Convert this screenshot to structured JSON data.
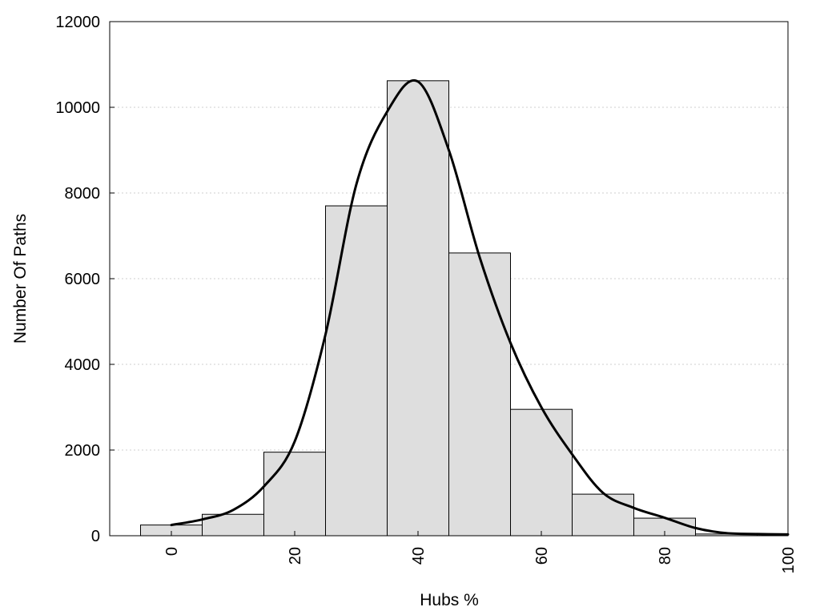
{
  "chart_data": {
    "type": "bar",
    "subtype": "histogram-with-density-curve",
    "xlabel": "Hubs %",
    "ylabel": "Number Of Paths",
    "xlim": [
      -10,
      100
    ],
    "ylim": [
      0,
      12000
    ],
    "x_ticks": [
      "0",
      "20",
      "40",
      "60",
      "80",
      "100"
    ],
    "y_ticks": [
      "0",
      "2000",
      "4000",
      "6000",
      "8000",
      "10000",
      "12000"
    ],
    "grid": "horizontal-dotted",
    "bars": [
      {
        "x0": -5,
        "x1": 5,
        "value": 250
      },
      {
        "x0": 5,
        "x1": 15,
        "value": 500
      },
      {
        "x0": 15,
        "x1": 25,
        "value": 1950
      },
      {
        "x0": 25,
        "x1": 35,
        "value": 7700
      },
      {
        "x0": 35,
        "x1": 45,
        "value": 10620
      },
      {
        "x0": 45,
        "x1": 55,
        "value": 6600
      },
      {
        "x0": 55,
        "x1": 65,
        "value": 2950
      },
      {
        "x0": 65,
        "x1": 75,
        "value": 970
      },
      {
        "x0": 75,
        "x1": 85,
        "value": 410
      },
      {
        "x0": 85,
        "x1": 95,
        "value": 40
      },
      {
        "x0": 95,
        "x1": 105,
        "value": 30
      }
    ],
    "curve": {
      "x": [
        0,
        5,
        10,
        15,
        20,
        25,
        30,
        35,
        40,
        45,
        50,
        55,
        60,
        65,
        70,
        75,
        80,
        85,
        90,
        95,
        100
      ],
      "y": [
        250,
        380,
        600,
        1150,
        2200,
        4700,
        8200,
        9900,
        10600,
        9000,
        6500,
        4500,
        3000,
        1900,
        1000,
        650,
        420,
        180,
        60,
        40,
        30
      ]
    }
  }
}
